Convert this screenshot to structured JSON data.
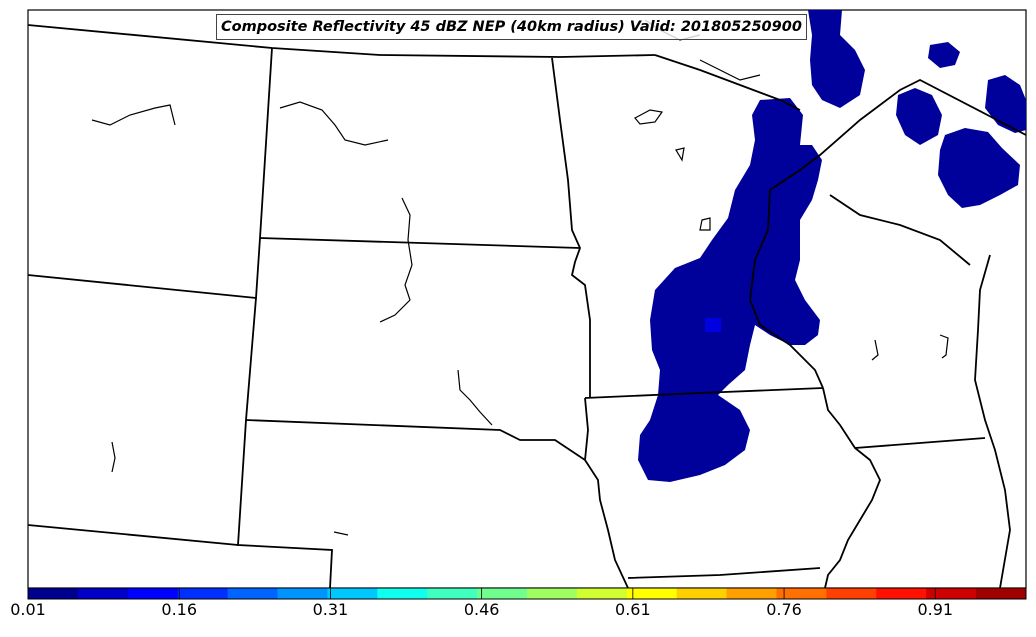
{
  "title": "Composite Reflectivity 45 dBZ NEP (40km radius) Valid: 201805250900",
  "colorbar": {
    "min": 0.01,
    "max": 1.0,
    "tick_labels": [
      "0.01",
      "0.16",
      "0.31",
      "0.46",
      "0.61",
      "0.76",
      "0.91"
    ],
    "tick_values": [
      0.01,
      0.16,
      0.31,
      0.46,
      0.61,
      0.76,
      0.91
    ],
    "colors": [
      "#00008f",
      "#0000c8",
      "#0000ff",
      "#0030ff",
      "#0064ff",
      "#0094ff",
      "#00c8ff",
      "#10ffee",
      "#40ffbf",
      "#70ff8f",
      "#9fff60",
      "#cfff30",
      "#ffff00",
      "#ffd000",
      "#ffa000",
      "#ff7000",
      "#ff4000",
      "#ff1000",
      "#cf0000",
      "#9f0000"
    ]
  },
  "colors": {
    "probability_fill": "#00009a",
    "probability_high": "#0000e0",
    "boundaries": "#000000"
  }
}
